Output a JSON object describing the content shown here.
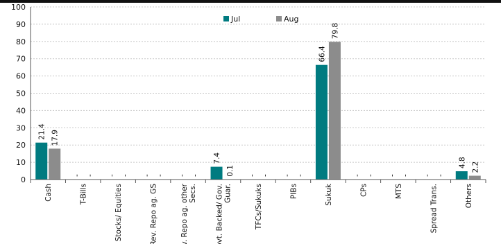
{
  "chart_data": {
    "type": "bar",
    "title": "",
    "xlabel": "",
    "ylabel": "",
    "ylim": [
      0,
      100
    ],
    "yticks": [
      0,
      10,
      20,
      30,
      40,
      50,
      60,
      70,
      80,
      90,
      100
    ],
    "grid": true,
    "legend_position": "top-center",
    "categories": [
      [
        "Cash"
      ],
      [
        "T-Bills"
      ],
      [
        "Stocks/ Equities"
      ],
      [
        "Rev. Repo ag. GS"
      ],
      [
        "Rev. Repo ag. other",
        "Secs."
      ],
      [
        "Govt. Backed/ Gov.",
        "Guar."
      ],
      [
        "TFCs/Sukuks"
      ],
      [
        "PIBs"
      ],
      [
        "Sukuk"
      ],
      [
        "CPs"
      ],
      [
        "MTS"
      ],
      [
        "Spread Trans."
      ],
      [
        "Others"
      ]
    ],
    "series": [
      {
        "name": "Jul",
        "color": "#007b80",
        "values": [
          21.4,
          0,
          0,
          0,
          0,
          7.4,
          0,
          0,
          66.4,
          0,
          0,
          0,
          4.8
        ],
        "labels": [
          "21.4",
          "-",
          "-",
          "-",
          "-",
          "7.4",
          "-",
          "-",
          "66.4",
          "-",
          "-",
          "-",
          "4.8"
        ]
      },
      {
        "name": "Aug",
        "color": "#8c8c8c",
        "values": [
          17.9,
          0,
          0,
          0,
          0,
          0.1,
          0,
          0,
          79.8,
          0,
          0,
          0,
          2.2
        ],
        "labels": [
          "17.9",
          "-",
          "-",
          "-",
          "-",
          "0.1",
          "-",
          "-",
          "79.8",
          "-",
          "-",
          "-",
          "2.2"
        ]
      }
    ]
  }
}
